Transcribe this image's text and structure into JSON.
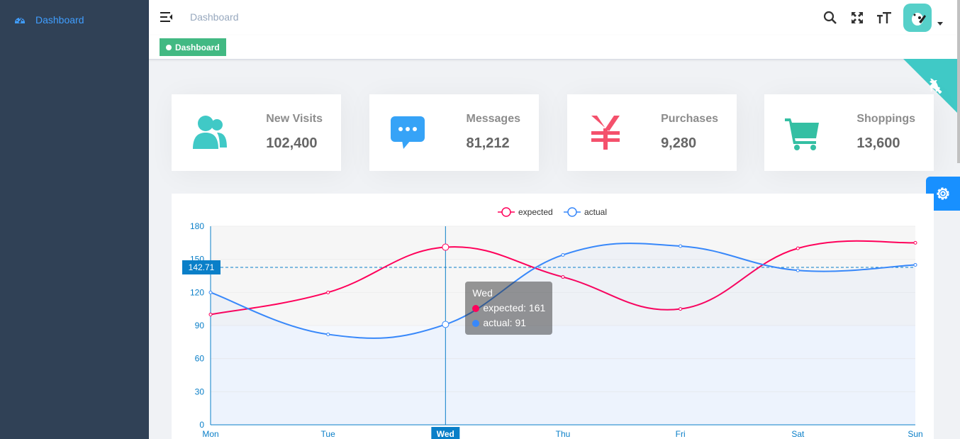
{
  "sidebar": {
    "items": [
      {
        "label": "Dashboard",
        "icon": "dashboard-icon"
      }
    ]
  },
  "navbar": {
    "breadcrumb": "Dashboard",
    "icons": [
      "search-icon",
      "fullscreen-icon",
      "size-icon"
    ]
  },
  "tags": [
    {
      "label": "Dashboard",
      "active": true
    }
  ],
  "cards": [
    {
      "label": "New Visits",
      "value": "102,400",
      "icon": "people-icon",
      "color": "#40c9c6"
    },
    {
      "label": "Messages",
      "value": "81,212",
      "icon": "message-icon",
      "color": "#36a3f7"
    },
    {
      "label": "Purchases",
      "value": "9,280",
      "icon": "money-icon",
      "color": "#f4516c"
    },
    {
      "label": "Shoppings",
      "value": "13,600",
      "icon": "shopping-icon",
      "color": "#34bfa3"
    }
  ],
  "colors": {
    "sidebar_bg": "#304156",
    "accent": "#409eff",
    "tag_active": "#42b983",
    "expected": "#FF005A",
    "actual": "#3888fa",
    "axis": "#0a7fc8"
  },
  "chart_data": {
    "type": "line",
    "categories": [
      "Mon",
      "Tue",
      "Wed",
      "Thu",
      "Fri",
      "Sat",
      "Sun"
    ],
    "series": [
      {
        "name": "expected",
        "values": [
          100,
          120,
          161,
          134,
          105,
          160,
          165
        ]
      },
      {
        "name": "actual",
        "values": [
          120,
          82,
          91,
          154,
          162,
          140,
          145
        ]
      }
    ],
    "ylim": [
      0,
      180
    ],
    "yticks": [
      0,
      30,
      60,
      90,
      120,
      150,
      180
    ],
    "legend_position": "top-center",
    "smooth": true,
    "axis_pointer": {
      "category": "Wed",
      "value_label": "142.71",
      "value": 142.71
    },
    "tooltip": {
      "title": "Wed",
      "rows": [
        {
          "name": "expected",
          "value": 161,
          "text": "expected: 161"
        },
        {
          "name": "actual",
          "value": 91,
          "text": "actual: 91"
        }
      ]
    }
  }
}
